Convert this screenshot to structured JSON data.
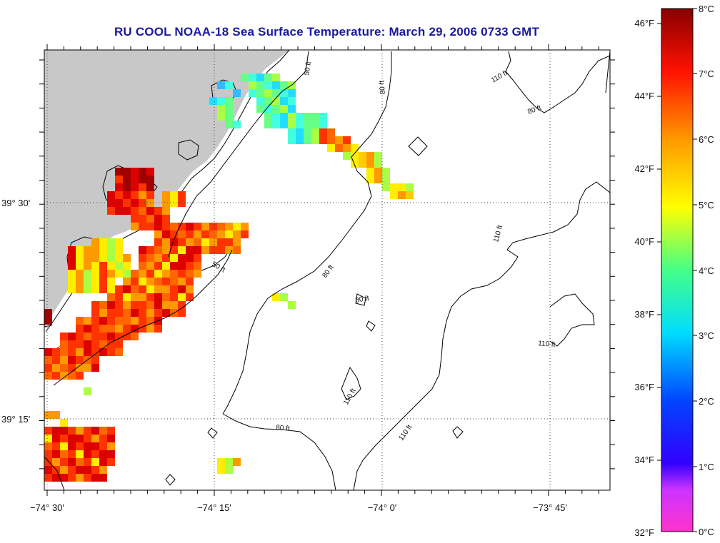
{
  "title": "RU COOL  NOAA-18  Sea Surface Temperature:  March 29, 2006 0733 GMT",
  "map": {
    "lat_labels": [
      {
        "text": "39° 30'",
        "lat": 39.5
      },
      {
        "text": "39° 15'",
        "lat": 39.25
      }
    ],
    "lon_labels": [
      {
        "text": "−74° 30'",
        "lon": -74.5
      },
      {
        "text": "−74° 15'",
        "lon": -74.25
      },
      {
        "text": "−74° 0'",
        "lon": -74.0
      },
      {
        "text": "−73° 45'",
        "lon": -73.75
      }
    ],
    "land_color": "#c8c8c8",
    "gridlines": "dotted"
  },
  "contours": [
    {
      "label": "50 ft",
      "depth_ft": 50
    },
    {
      "label": "50 ft",
      "depth_ft": 50
    },
    {
      "label": "80 ft",
      "depth_ft": 80
    },
    {
      "label": "80 ft",
      "depth_ft": 80
    },
    {
      "label": "80 ft",
      "depth_ft": 80
    },
    {
      "label": "80 ft",
      "depth_ft": 80
    },
    {
      "label": "80 ft",
      "depth_ft": 80
    },
    {
      "label": "110 ft",
      "depth_ft": 110
    },
    {
      "label": "110 ft",
      "depth_ft": 110
    },
    {
      "label": "110 ft",
      "depth_ft": 110
    },
    {
      "label": "110 ft",
      "depth_ft": 110
    },
    {
      "label": "110 ft",
      "depth_ft": 110
    }
  ],
  "colorbar": {
    "f_labels": [
      "46°F",
      "44°F",
      "42°F",
      "40°F",
      "38°F",
      "36°F",
      "34°F",
      "32°F"
    ],
    "c_labels": [
      "8°C",
      "7°C",
      "6°C",
      "5°C",
      "4°C",
      "3°C",
      "2°C",
      "1°C",
      "0°C"
    ],
    "stops": [
      "#ff33cc",
      "#6600ff",
      "#0000ff",
      "#0088ff",
      "#00ffff",
      "#00ff88",
      "#ffff00",
      "#ff8800",
      "#ff0000",
      "#880000"
    ]
  }
}
